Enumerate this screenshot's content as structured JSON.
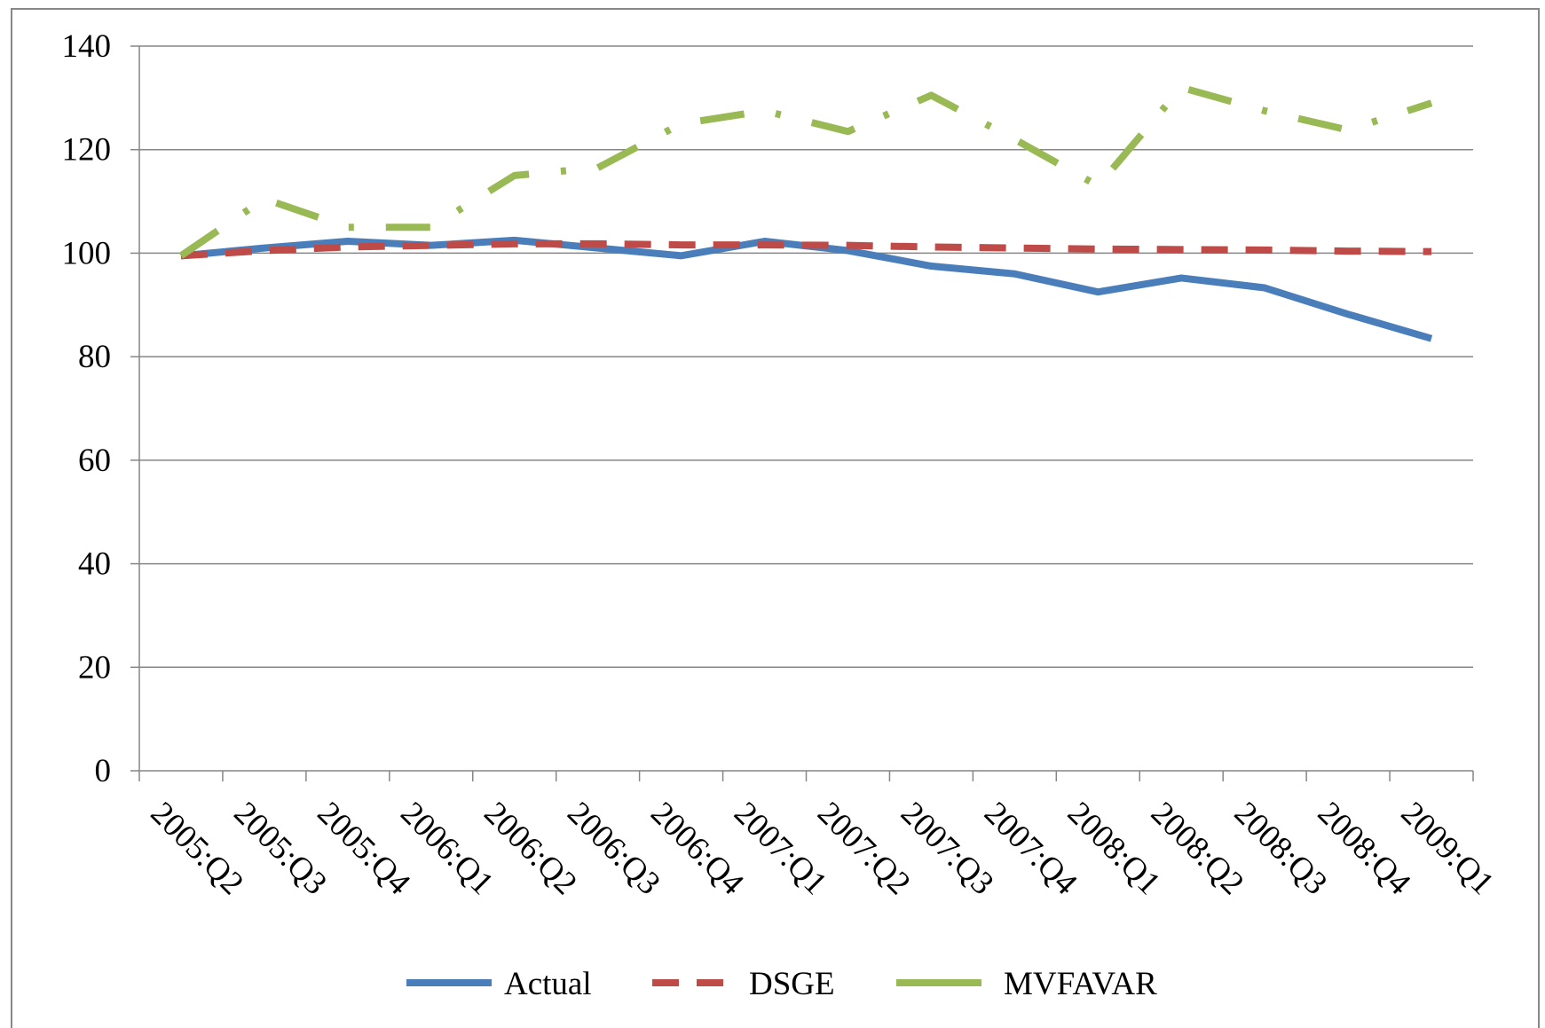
{
  "chart_data": {
    "type": "line",
    "categories": [
      "2005:Q2",
      "2005:Q3",
      "2005:Q4",
      "2006:Q1",
      "2006:Q2",
      "2006:Q3",
      "2006:Q4",
      "2007:Q1",
      "2007:Q2",
      "2007:Q3",
      "2007:Q4",
      "2008:Q1",
      "2008:Q2",
      "2008:Q3",
      "2008:Q4",
      "2009:Q1"
    ],
    "series": [
      {
        "name": "Actual",
        "color": "#4a7ebb",
        "dash": "solid",
        "values": [
          99.5,
          101,
          102.3,
          101.5,
          102.5,
          101,
          99.5,
          102.3,
          100.5,
          97.5,
          96,
          92.5,
          95.2,
          93.3,
          88.2,
          83.5
        ]
      },
      {
        "name": "DSGE",
        "color": "#be4b48",
        "dash": "dash",
        "values": [
          99.5,
          100.5,
          101.2,
          101.5,
          101.8,
          101.8,
          101.6,
          101.6,
          101.5,
          101.2,
          101,
          100.8,
          100.7,
          100.6,
          100.4,
          100.3
        ]
      },
      {
        "name": "MVFAVAR",
        "color": "#98b954",
        "dash": "dashdot",
        "values": [
          99.5,
          110.5,
          105,
          105,
          115,
          116.5,
          125,
          127.5,
          123.5,
          130.5,
          122,
          113,
          132,
          127.5,
          123.8,
          129
        ]
      }
    ],
    "ylim": [
      0,
      140
    ],
    "yticks": [
      0,
      20,
      40,
      60,
      80,
      100,
      120,
      140
    ],
    "grid": true,
    "legend": "bottom"
  }
}
